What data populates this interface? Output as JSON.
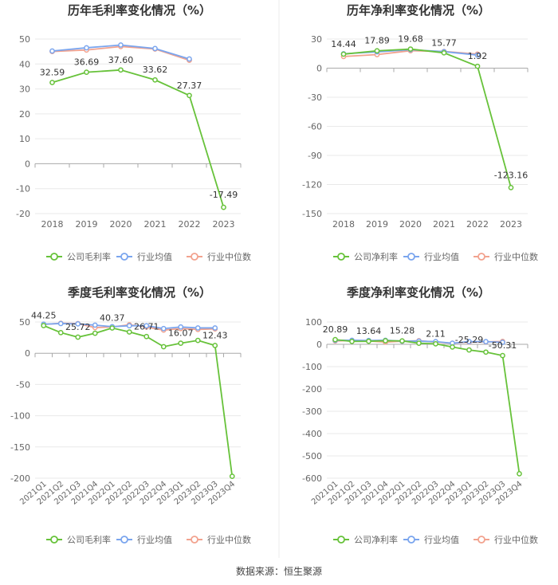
{
  "source_text": "数据来源：恒生聚源",
  "colors": {
    "company": "#67c23a",
    "industry_avg": "#7aa5ee",
    "industry_median": "#f2a28e",
    "grid": "#e9e9e9",
    "axis": "#aaaaaa",
    "tick_text": "#666666",
    "label_text": "#333333",
    "divider": "#eeeeee"
  },
  "chart_data": [
    {
      "type": "line",
      "title": "历年毛利率变化情况（%）",
      "categories": [
        "2018",
        "2019",
        "2020",
        "2021",
        "2022",
        "2023"
      ],
      "ylim": [
        -20,
        50
      ],
      "yticks": [
        50,
        40,
        30,
        20,
        10,
        0,
        -10,
        -20
      ],
      "legend": [
        "公司毛利率",
        "行业均值",
        "行业中位数"
      ],
      "legend_position": "bottom",
      "series": [
        {
          "name": "公司毛利率",
          "values": [
            32.59,
            36.69,
            37.6,
            33.62,
            27.37,
            -17.49
          ]
        },
        {
          "name": "行业均值",
          "values": [
            45.2,
            46.5,
            47.6,
            46.2,
            42.0,
            null
          ]
        },
        {
          "name": "行业中位数",
          "values": [
            45.0,
            45.6,
            47.0,
            46.0,
            41.5,
            null
          ]
        }
      ],
      "data_labels": [
        "32.59",
        "36.69",
        "37.60",
        "33.62",
        "27.37",
        "-17.49"
      ]
    },
    {
      "type": "line",
      "title": "历年净利率变化情况（%）",
      "categories": [
        "2018",
        "2019",
        "2020",
        "2021",
        "2022",
        "2023"
      ],
      "ylim": [
        -150,
        30
      ],
      "yticks": [
        30,
        0,
        -30,
        -60,
        -90,
        -120,
        -150
      ],
      "legend": [
        "公司净利率",
        "行业均值",
        "行业中位数"
      ],
      "legend_position": "bottom",
      "series": [
        {
          "name": "公司净利率",
          "values": [
            14.44,
            17.89,
            19.68,
            15.77,
            1.92,
            -123.16
          ]
        },
        {
          "name": "行业均值",
          "values": [
            14.8,
            16.8,
            19.0,
            17.0,
            13.5,
            null
          ]
        },
        {
          "name": "行业中位数",
          "values": [
            12.0,
            14.0,
            18.0,
            17.2,
            14.5,
            null
          ]
        }
      ],
      "data_labels": [
        "14.44",
        "17.89",
        "19.68",
        "15.77",
        "1.92",
        "-123.16"
      ]
    },
    {
      "type": "line",
      "title": "季度毛利率变化情况（%）",
      "categories": [
        "2021Q1",
        "2021Q2",
        "2021Q3",
        "2021Q4",
        "2022Q1",
        "2022Q2",
        "2022Q3",
        "2022Q4",
        "2023Q1",
        "2023Q2",
        "2023Q3",
        "2023Q4"
      ],
      "ylim": [
        -200,
        50
      ],
      "yticks": [
        50,
        0,
        -50,
        -100,
        -150,
        -200
      ],
      "legend": [
        "公司毛利率",
        "行业均值",
        "行业中位数"
      ],
      "legend_position": "bottom",
      "series": [
        {
          "name": "公司毛利率",
          "values": [
            44.25,
            33.0,
            25.72,
            32.0,
            40.37,
            34.0,
            26.71,
            10.5,
            16.07,
            20.5,
            12.43,
            -197.0
          ]
        },
        {
          "name": "行业均值",
          "values": [
            46.5,
            47.5,
            47.0,
            45.0,
            42.5,
            44.0,
            44.0,
            39.5,
            42.0,
            40.5,
            40.5,
            null
          ]
        },
        {
          "name": "行业中位数",
          "values": [
            46.0,
            48.0,
            47.5,
            41.0,
            42.0,
            45.5,
            42.0,
            37.0,
            39.5,
            38.0,
            39.0,
            null
          ]
        }
      ],
      "data_labels": [
        "44.25",
        "",
        "25.72",
        "",
        "40.37",
        "",
        "26.71",
        "",
        "16.07",
        "",
        "12.43",
        ""
      ]
    },
    {
      "type": "line",
      "title": "季度净利率变化情况（%）",
      "categories": [
        "2021Q1",
        "2021Q2",
        "2021Q3",
        "2021Q4",
        "2022Q1",
        "2022Q2",
        "2022Q3",
        "2022Q4",
        "2023Q1",
        "2023Q2",
        "2023Q3",
        "2023Q4"
      ],
      "ylim": [
        -600,
        100
      ],
      "yticks": [
        100,
        0,
        -100,
        -200,
        -300,
        -400,
        -500,
        -600
      ],
      "legend": [
        "公司净利率",
        "行业均值",
        "行业中位数"
      ],
      "legend_position": "bottom",
      "series": [
        {
          "name": "公司净利率",
          "values": [
            20.89,
            13.0,
            13.64,
            16.0,
            15.28,
            5.0,
            2.11,
            -12.0,
            -25.29,
            -35.0,
            -50.31,
            -580.0
          ]
        },
        {
          "name": "行业均值",
          "values": [
            18.0,
            18.0,
            17.0,
            18.0,
            14.0,
            14.0,
            12.0,
            5.0,
            12.0,
            12.0,
            9.0,
            null
          ]
        },
        {
          "name": "行业中位数",
          "values": [
            15.0,
            17.0,
            15.0,
            10.0,
            14.0,
            16.0,
            10.0,
            5.0,
            10.0,
            11.0,
            13.0,
            null
          ]
        }
      ],
      "data_labels": [
        "20.89",
        "",
        "13.64",
        "",
        "15.28",
        "",
        "2.11",
        "",
        "-25.29",
        "",
        "-50.31",
        ""
      ]
    }
  ]
}
